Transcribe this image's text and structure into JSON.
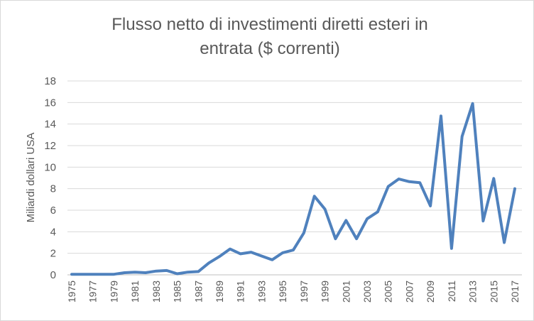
{
  "chart_data": {
    "type": "line",
    "title_lines": [
      "Flusso netto di investimenti diretti esteri in",
      "entrata ($ correnti)"
    ],
    "xlabel": "",
    "ylabel": "Miliardi dollari USA",
    "ylim": [
      0,
      18
    ],
    "y_ticks": [
      "0",
      "2",
      "4",
      "6",
      "8",
      "10",
      "12",
      "14",
      "16",
      "18"
    ],
    "grid": true,
    "legend": "none",
    "x_ticks": [
      "1975",
      "1977",
      "1979",
      "1981",
      "1983",
      "1985",
      "1987",
      "1989",
      "1991",
      "1993",
      "1995",
      "1997",
      "1999",
      "2001",
      "2003",
      "2005",
      "2007",
      "2009",
      "2011",
      "2013",
      "2015",
      "2017"
    ],
    "line_color": "#4f81bd",
    "grid_color": "#d9d9d9",
    "series": [
      {
        "x": [
          1975,
          1976,
          1977,
          1978,
          1979,
          1980,
          1981,
          1982,
          1983,
          1984,
          1985,
          1986,
          1987,
          1988,
          1989,
          1990,
          1991,
          1992,
          1993,
          1994,
          1995,
          1996,
          1997,
          1998,
          1999,
          2000,
          2001,
          2002,
          2003,
          2004,
          2005,
          2006,
          2007,
          2008,
          2009,
          2010,
          2011,
          2012,
          2013,
          2014,
          2015,
          2016,
          2017
        ],
        "values": [
          0.05,
          0.05,
          0.05,
          0.05,
          0.05,
          0.2,
          0.25,
          0.2,
          0.35,
          0.4,
          0.1,
          0.25,
          0.3,
          1.1,
          1.7,
          2.4,
          1.95,
          2.1,
          1.75,
          1.4,
          2.05,
          2.3,
          3.9,
          7.3,
          6.1,
          3.35,
          5.05,
          3.35,
          5.2,
          5.85,
          8.2,
          8.9,
          8.65,
          8.55,
          6.4,
          14.75,
          2.45,
          12.85,
          15.9,
          5.0,
          8.95,
          3.0,
          8.0
        ]
      }
    ]
  }
}
